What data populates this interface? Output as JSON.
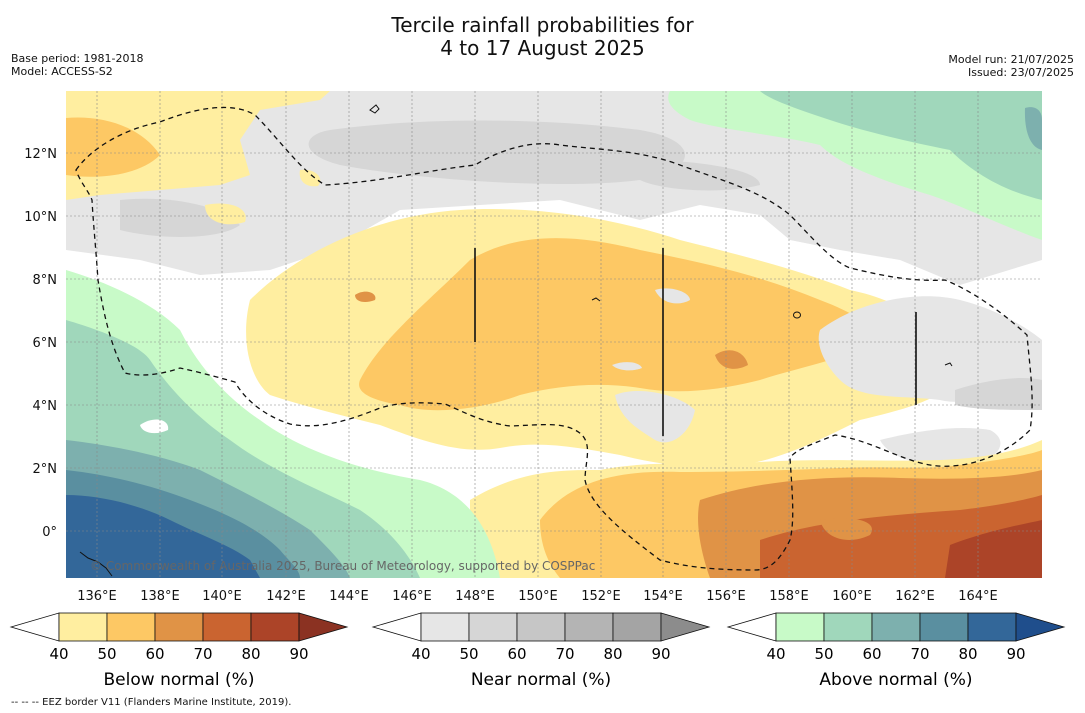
{
  "title": {
    "line1": "Tercile rainfall probabilities for",
    "line2": "4 to 17 August 2025"
  },
  "meta_left": {
    "base_period": "Base period: 1981-2018",
    "model": "Model: ACCESS-S2"
  },
  "meta_right": {
    "model_run": "Model run: 21/07/2025",
    "issued": "Issued: 23/07/2025"
  },
  "map": {
    "lat_labels": [
      "12°N",
      "10°N",
      "8°N",
      "6°N",
      "4°N",
      "2°N",
      "0°"
    ],
    "lon_labels": [
      "136°E",
      "138°E",
      "140°E",
      "142°E",
      "144°E",
      "146°E",
      "148°E",
      "150°E",
      "152°E",
      "154°E",
      "156°E",
      "158°E",
      "160°E",
      "162°E",
      "164°E"
    ],
    "copyright": "© Commonwealth of Australia 2025, Bureau of Meteorology, supported by COSPPac"
  },
  "legends": [
    {
      "label": "Below normal (%)",
      "ticks": [
        "40",
        "50",
        "60",
        "70",
        "80",
        "90"
      ],
      "colors": [
        "#ffffff",
        "#ffeea0",
        "#fdc864",
        "#e09346",
        "#ca6430",
        "#ac4428",
        "#8b3222"
      ]
    },
    {
      "label": "Near normal (%)",
      "ticks": [
        "40",
        "50",
        "60",
        "70",
        "80",
        "90"
      ],
      "colors": [
        "#ffffff",
        "#e6e6e6",
        "#d6d6d6",
        "#c6c6c6",
        "#b4b4b4",
        "#a4a4a4",
        "#8c8c8c"
      ]
    },
    {
      "label": "Above normal (%)",
      "ticks": [
        "40",
        "50",
        "60",
        "70",
        "80",
        "90"
      ],
      "colors": [
        "#ffffff",
        "#c8fac8",
        "#a0d7bb",
        "#7db0ae",
        "#5a8fa0",
        "#336799",
        "#1f4e8c"
      ]
    }
  ],
  "footnote": "--  --  -- EEZ border V11 (Flanders Marine Institute, 2019)."
}
